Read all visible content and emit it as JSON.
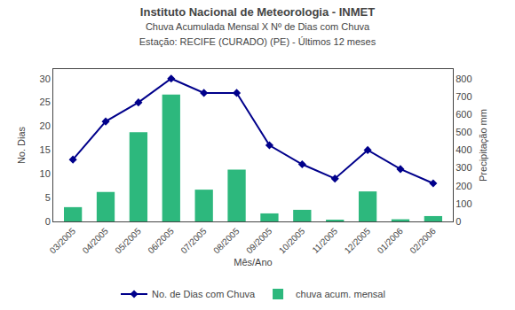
{
  "chart_data": {
    "type": "combo",
    "title": "Instituto Nacional de Meteorologia - INMET",
    "subtitle": [
      "Chuva Acumulada Mensal X Nº de Dias com Chuva",
      "Estação: RECIFE (CURADO) (PE) - Últimos 12 meses"
    ],
    "x_label": "Mês/Ano",
    "y_label": "No. Dias",
    "y2_label": "Precipitação mm",
    "categories": [
      "03/2005",
      "04/2005",
      "05/2005",
      "06/2005",
      "07/2005",
      "08/2005",
      "09/2005",
      "10/2005",
      "11/2005",
      "12/2005",
      "01/2006",
      "02/2006"
    ],
    "series": [
      {
        "name": "chuva acum. mensal",
        "type": "bar",
        "axis": "y2",
        "color": "#2db87d",
        "values": [
          80,
          165,
          500,
          710,
          178,
          290,
          45,
          65,
          10,
          168,
          12,
          30
        ]
      },
      {
        "name": "No. de Dias com Chuva",
        "type": "line",
        "axis": "y",
        "color": "#00008b",
        "marker": "diamond",
        "line_style": "solid",
        "values": [
          13,
          21,
          25,
          30,
          27,
          27,
          16,
          12,
          9,
          15,
          11,
          8
        ]
      }
    ],
    "ylim": [
      0,
      32
    ],
    "yticks": [
      0,
      5,
      10,
      15,
      20,
      25,
      30
    ],
    "y2lim": [
      0,
      853
    ],
    "y2ticks": [
      0,
      100,
      200,
      300,
      400,
      500,
      600,
      700,
      800
    ],
    "grid": false,
    "legend": "bottom"
  }
}
